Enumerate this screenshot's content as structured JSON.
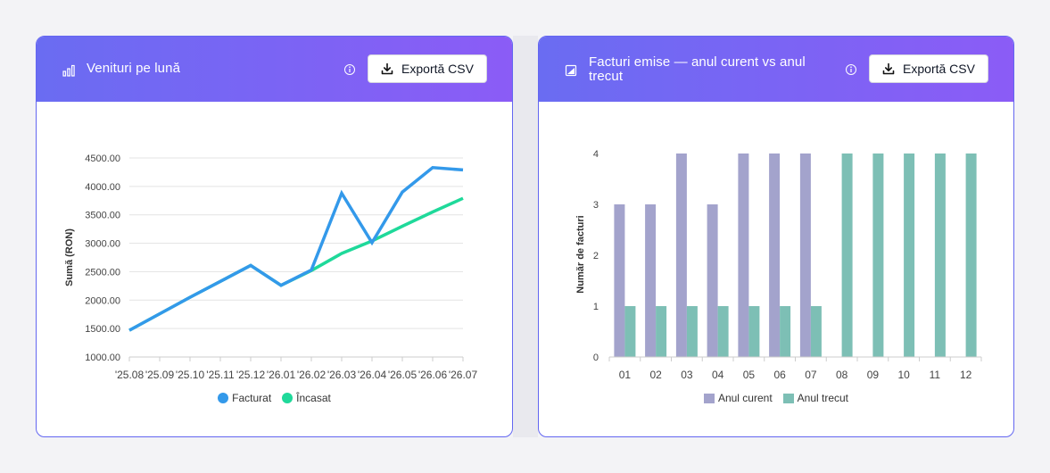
{
  "cards": [
    {
      "title": "Venituri pe lună",
      "export_label": "Exportă CSV",
      "icon": "bar-chart-icon"
    },
    {
      "title": "Facturi emise — anul curent vs anul trecut",
      "export_label": "Exportă CSV",
      "icon": "image-chart-icon"
    }
  ],
  "chart_data": [
    {
      "type": "line",
      "ylabel": "Sumă (RON)",
      "ylim": [
        1000,
        4500
      ],
      "yticks": [
        "1000.00",
        "1500.00",
        "2000.00",
        "2500.00",
        "3000.00",
        "3500.00",
        "4000.00",
        "4500.00"
      ],
      "categories": [
        "'25.08",
        "'25.09",
        "'25.10",
        "'25.11",
        "'25.12",
        "'26.01",
        "'26.02",
        "'26.03",
        "'26.04",
        "'26.05",
        "'26.06",
        "'26.07"
      ],
      "series": [
        {
          "name": "Facturat",
          "color": "#3399ea",
          "values": [
            1470,
            1760,
            2050,
            2330,
            2610,
            2260,
            2530,
            3880,
            3010,
            3900,
            4330,
            4290
          ]
        },
        {
          "name": "Încasat",
          "color": "#1fd99a",
          "values": [
            1470,
            1760,
            2050,
            2330,
            2610,
            2260,
            2520,
            2820,
            3040,
            3300,
            3550,
            3790
          ]
        }
      ],
      "grid": true,
      "legend": "bottom"
    },
    {
      "type": "bar",
      "ylabel": "Număr de facturi",
      "ylim": [
        0,
        4
      ],
      "yticks": [
        "0",
        "1",
        "2",
        "3",
        "4"
      ],
      "categories": [
        "01",
        "02",
        "03",
        "04",
        "05",
        "06",
        "07",
        "08",
        "09",
        "10",
        "11",
        "12"
      ],
      "series": [
        {
          "name": "Anul curent",
          "color": "#a3a3cc",
          "values": [
            3,
            3,
            4,
            3,
            4,
            4,
            4,
            0,
            0,
            0,
            0,
            0
          ]
        },
        {
          "name": "Anul trecut",
          "color": "#7dbfb5",
          "values": [
            1,
            1,
            1,
            1,
            1,
            1,
            1,
            4,
            4,
            4,
            4,
            4
          ]
        }
      ],
      "grid": false,
      "legend": "bottom"
    }
  ]
}
